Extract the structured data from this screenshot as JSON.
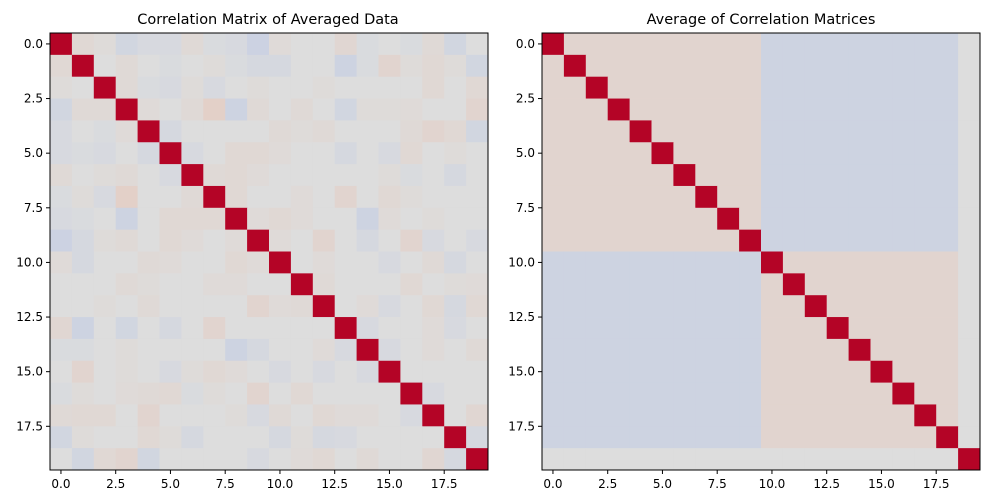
{
  "chart_data": [
    {
      "type": "heatmap",
      "title": "Correlation Matrix of Averaged Data",
      "size": 20,
      "colormap": "coolwarm",
      "vlim": [
        -1,
        1
      ],
      "xticks": [
        "0.0",
        "2.5",
        "5.0",
        "7.5",
        "10.0",
        "12.5",
        "15.0",
        "17.5"
      ],
      "yticks": [
        "0.0",
        "2.5",
        "5.0",
        "7.5",
        "10.0",
        "12.5",
        "15.0",
        "17.5"
      ],
      "tick_values": [
        0,
        2.5,
        5,
        7.5,
        10,
        12.5,
        15,
        17.5
      ],
      "values": [
        [
          1.0,
          0.05,
          0.02,
          -0.06,
          -0.03,
          -0.03,
          0.04,
          -0.02,
          -0.03,
          -0.09,
          0.03,
          0.0,
          0.0,
          0.06,
          -0.02,
          0.0,
          -0.02,
          0.04,
          -0.06,
          0.0
        ],
        [
          0.05,
          1.0,
          0.0,
          0.04,
          0.0,
          -0.02,
          0.0,
          0.02,
          -0.02,
          -0.04,
          -0.04,
          0.0,
          0.0,
          -0.08,
          -0.02,
          0.08,
          0.02,
          0.05,
          0.02,
          -0.06
        ],
        [
          0.02,
          0.0,
          1.0,
          0.04,
          -0.02,
          -0.03,
          0.02,
          -0.03,
          0.0,
          0.02,
          0.0,
          0.0,
          0.02,
          0.0,
          0.0,
          0.0,
          0.0,
          0.05,
          0.0,
          0.05
        ],
        [
          -0.06,
          0.04,
          0.04,
          1.0,
          0.03,
          0.0,
          0.04,
          0.12,
          -0.08,
          0.04,
          0.0,
          0.04,
          0.0,
          -0.06,
          0.02,
          0.02,
          0.03,
          0.0,
          0.0,
          0.08
        ],
        [
          -0.03,
          0.0,
          -0.02,
          0.03,
          1.0,
          -0.04,
          0.0,
          0.0,
          0.0,
          0.0,
          0.04,
          0.02,
          0.04,
          0.0,
          0.0,
          0.0,
          0.04,
          0.08,
          0.05,
          -0.06
        ],
        [
          -0.03,
          -0.02,
          -0.03,
          0.0,
          -0.04,
          1.0,
          -0.03,
          0.0,
          0.05,
          0.05,
          0.03,
          0.0,
          0.0,
          -0.04,
          0.0,
          -0.03,
          0.05,
          0.0,
          0.02,
          0.0
        ],
        [
          0.04,
          0.0,
          0.02,
          0.04,
          0.0,
          -0.03,
          1.0,
          0.04,
          0.05,
          0.03,
          0.0,
          0.0,
          0.0,
          0.0,
          0.0,
          0.02,
          -0.02,
          0.0,
          -0.04,
          0.0
        ],
        [
          -0.02,
          0.02,
          -0.03,
          0.12,
          0.0,
          0.0,
          0.04,
          1.0,
          0.05,
          0.0,
          0.0,
          0.03,
          0.0,
          0.08,
          0.0,
          0.05,
          0.02,
          0.0,
          0.0,
          0.0
        ],
        [
          -0.03,
          -0.02,
          0.0,
          -0.08,
          0.0,
          0.05,
          0.05,
          0.05,
          1.0,
          0.03,
          0.05,
          0.03,
          0.0,
          0.0,
          -0.08,
          0.03,
          0.0,
          0.02,
          0.0,
          0.0
        ],
        [
          -0.09,
          -0.04,
          0.02,
          0.04,
          0.0,
          0.05,
          0.03,
          0.0,
          0.03,
          1.0,
          0.03,
          0.0,
          0.08,
          0.0,
          -0.04,
          0.0,
          0.08,
          -0.03,
          0.0,
          -0.03
        ],
        [
          0.03,
          -0.04,
          0.0,
          0.0,
          0.04,
          0.03,
          0.0,
          0.0,
          0.05,
          0.03,
          1.0,
          0.0,
          0.03,
          0.0,
          0.0,
          -0.03,
          0.0,
          0.04,
          -0.04,
          0.0
        ],
        [
          0.0,
          0.0,
          0.0,
          0.04,
          0.02,
          0.0,
          0.0,
          0.03,
          0.03,
          0.0,
          0.0,
          1.0,
          0.04,
          0.0,
          0.0,
          0.0,
          0.05,
          0.0,
          0.02,
          0.03
        ],
        [
          0.0,
          0.0,
          0.02,
          0.0,
          0.04,
          0.0,
          0.0,
          0.0,
          0.0,
          0.08,
          0.03,
          0.04,
          1.0,
          0.0,
          0.03,
          -0.03,
          0.0,
          0.05,
          -0.04,
          0.05
        ],
        [
          0.06,
          -0.08,
          0.0,
          -0.06,
          0.0,
          -0.04,
          0.0,
          0.08,
          0.0,
          0.0,
          0.0,
          0.0,
          0.0,
          1.0,
          -0.03,
          0.0,
          0.0,
          0.03,
          -0.03,
          0.0
        ],
        [
          -0.02,
          -0.02,
          0.0,
          0.02,
          0.0,
          0.0,
          0.0,
          0.0,
          -0.08,
          -0.04,
          0.0,
          0.0,
          0.03,
          -0.03,
          1.0,
          -0.03,
          0.0,
          0.03,
          0.0,
          0.04
        ],
        [
          0.0,
          0.08,
          0.0,
          0.02,
          0.0,
          -0.03,
          0.02,
          0.05,
          0.03,
          0.0,
          -0.03,
          0.0,
          -0.03,
          0.0,
          -0.03,
          1.0,
          0.0,
          0.0,
          0.0,
          0.0
        ],
        [
          -0.02,
          0.02,
          0.0,
          0.03,
          0.04,
          0.05,
          -0.02,
          0.02,
          0.0,
          0.08,
          0.0,
          0.05,
          0.0,
          0.0,
          0.0,
          0.0,
          1.0,
          -0.03,
          0.0,
          0.0
        ],
        [
          0.04,
          0.05,
          0.05,
          0.0,
          0.08,
          0.0,
          0.0,
          0.0,
          0.02,
          -0.03,
          0.04,
          0.0,
          0.05,
          0.03,
          0.03,
          0.0,
          -0.03,
          1.0,
          0.0,
          0.06
        ],
        [
          -0.06,
          0.02,
          0.0,
          0.0,
          0.05,
          0.02,
          -0.04,
          0.0,
          0.0,
          0.0,
          -0.04,
          0.02,
          -0.04,
          -0.03,
          0.0,
          0.0,
          0.0,
          0.0,
          1.0,
          -0.04
        ],
        [
          0.0,
          -0.06,
          0.05,
          0.08,
          -0.06,
          0.0,
          0.0,
          0.0,
          0.0,
          -0.03,
          0.0,
          0.03,
          0.05,
          0.0,
          0.04,
          0.0,
          0.0,
          0.06,
          -0.04,
          1.0
        ]
      ]
    },
    {
      "type": "heatmap",
      "title": "Average of Correlation Matrices",
      "size": 20,
      "colormap": "coolwarm",
      "vlim": [
        -1,
        1
      ],
      "xticks": [
        "0.0",
        "2.5",
        "5.0",
        "7.5",
        "10.0",
        "12.5",
        "15.0",
        "17.5"
      ],
      "yticks": [
        "0.0",
        "2.5",
        "5.0",
        "7.5",
        "10.0",
        "12.5",
        "15.0",
        "17.5"
      ],
      "tick_values": [
        0,
        2.5,
        5,
        7.5,
        10,
        12.5,
        15,
        17.5
      ],
      "block_structure": {
        "blocks": [
          [
            0,
            9
          ],
          [
            10,
            18
          ]
        ],
        "within_block": 0.08,
        "between_blocks": -0.08,
        "outside": 0.0,
        "diagonal": 1.0
      }
    }
  ]
}
